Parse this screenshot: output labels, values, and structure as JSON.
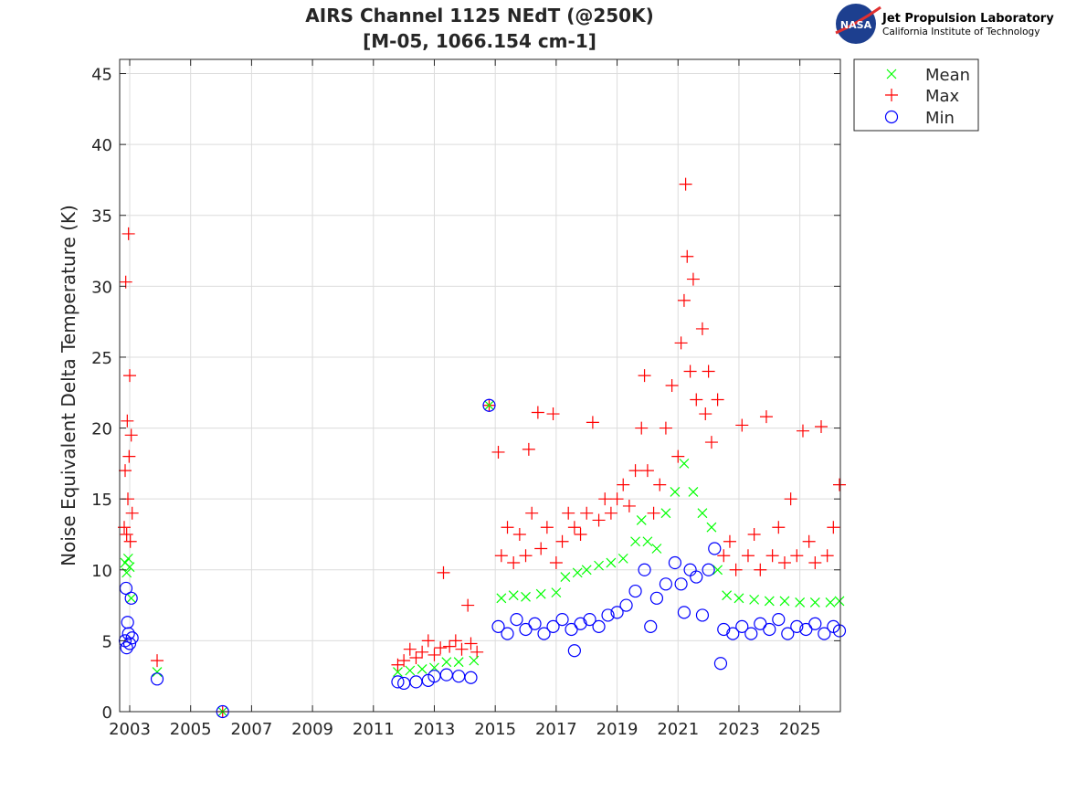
{
  "logo": {
    "agency": "NASA",
    "name": "Jet Propulsion Laboratory",
    "subtitle": "California Institute of Technology"
  },
  "chart_data": {
    "type": "scatter",
    "title": "AIRS Channel 1125 NEdT (@250K)",
    "subtitle": "[M-05, 1066.154 cm-1]",
    "xlabel": "",
    "ylabel": "Noise Equivalent Delta Temperature (K)",
    "xlim": [
      2002.67,
      2026.33
    ],
    "ylim": [
      0,
      46
    ],
    "xticks": [
      2003,
      2005,
      2007,
      2009,
      2011,
      2013,
      2015,
      2017,
      2019,
      2021,
      2023,
      2025
    ],
    "xtick_labels": [
      "2003",
      "2005",
      "2007",
      "2009",
      "2011",
      "2013",
      "2015",
      "2017",
      "2019",
      "2021",
      "2023",
      "2025"
    ],
    "yticks": [
      0,
      5,
      10,
      15,
      20,
      25,
      30,
      35,
      40,
      45
    ],
    "ytick_labels": [
      "0",
      "5",
      "10",
      "15",
      "20",
      "25",
      "30",
      "35",
      "40",
      "45"
    ],
    "grid": true,
    "legend": {
      "placement": "outside-top-right"
    },
    "series": [
      {
        "name": "Mean",
        "marker": "x",
        "color": "#00ff00",
        "points": [
          [
            2002.85,
            10.5
          ],
          [
            2002.9,
            9.8
          ],
          [
            2002.95,
            10.8
          ],
          [
            2003.0,
            10.2
          ],
          [
            2003.05,
            8.0
          ],
          [
            2003.9,
            2.8
          ],
          [
            2006.05,
            0
          ],
          [
            2011.8,
            2.8
          ],
          [
            2012.2,
            2.9
          ],
          [
            2012.6,
            3.0
          ],
          [
            2013.0,
            3.1
          ],
          [
            2013.4,
            3.5
          ],
          [
            2013.8,
            3.5
          ],
          [
            2014.3,
            3.6
          ],
          [
            2014.8,
            21.6
          ],
          [
            2015.2,
            8.0
          ],
          [
            2015.6,
            8.2
          ],
          [
            2016.0,
            8.1
          ],
          [
            2016.5,
            8.3
          ],
          [
            2017.0,
            8.4
          ],
          [
            2017.3,
            9.5
          ],
          [
            2017.7,
            9.8
          ],
          [
            2018.0,
            10.0
          ],
          [
            2018.4,
            10.3
          ],
          [
            2018.8,
            10.5
          ],
          [
            2019.2,
            10.8
          ],
          [
            2019.6,
            12
          ],
          [
            2019.8,
            13.5
          ],
          [
            2020.0,
            12
          ],
          [
            2020.3,
            11.5
          ],
          [
            2020.6,
            14
          ],
          [
            2020.9,
            15.5
          ],
          [
            2021.2,
            17.5
          ],
          [
            2021.5,
            15.5
          ],
          [
            2021.8,
            14
          ],
          [
            2022.1,
            13
          ],
          [
            2022.3,
            10
          ],
          [
            2022.6,
            8.2
          ],
          [
            2023.0,
            8.0
          ],
          [
            2023.5,
            7.9
          ],
          [
            2024.0,
            7.8
          ],
          [
            2024.5,
            7.8
          ],
          [
            2025.0,
            7.7
          ],
          [
            2025.5,
            7.7
          ],
          [
            2026.0,
            7.7
          ],
          [
            2026.3,
            7.8
          ]
        ]
      },
      {
        "name": "Max",
        "marker": "+",
        "color": "#ff0000",
        "points": [
          [
            2002.82,
            13
          ],
          [
            2002.85,
            17
          ],
          [
            2002.87,
            30.3
          ],
          [
            2002.9,
            12.5
          ],
          [
            2002.92,
            20.5
          ],
          [
            2002.94,
            15
          ],
          [
            2002.96,
            33.7
          ],
          [
            2002.98,
            18
          ],
          [
            2003.0,
            23.7
          ],
          [
            2003.02,
            12
          ],
          [
            2003.05,
            19.5
          ],
          [
            2003.08,
            14
          ],
          [
            2003.9,
            3.6
          ],
          [
            2006.05,
            0
          ],
          [
            2011.8,
            3.3
          ],
          [
            2012.0,
            3.6
          ],
          [
            2012.2,
            4.4
          ],
          [
            2012.4,
            3.8
          ],
          [
            2012.6,
            4.2
          ],
          [
            2012.8,
            5.0
          ],
          [
            2013.0,
            4.0
          ],
          [
            2013.2,
            4.5
          ],
          [
            2013.3,
            9.8
          ],
          [
            2013.5,
            4.6
          ],
          [
            2013.7,
            5.0
          ],
          [
            2013.9,
            4.4
          ],
          [
            2014.1,
            7.5
          ],
          [
            2014.2,
            4.8
          ],
          [
            2014.4,
            4.2
          ],
          [
            2014.8,
            21.6
          ],
          [
            2015.1,
            18.3
          ],
          [
            2015.2,
            11
          ],
          [
            2015.4,
            13
          ],
          [
            2015.6,
            10.5
          ],
          [
            2015.8,
            12.5
          ],
          [
            2016.0,
            11
          ],
          [
            2016.1,
            18.5
          ],
          [
            2016.2,
            14
          ],
          [
            2016.4,
            21.1
          ],
          [
            2016.5,
            11.5
          ],
          [
            2016.7,
            13
          ],
          [
            2016.9,
            21
          ],
          [
            2017.0,
            10.5
          ],
          [
            2017.2,
            12
          ],
          [
            2017.4,
            14
          ],
          [
            2017.6,
            13
          ],
          [
            2017.8,
            12.5
          ],
          [
            2018.0,
            14
          ],
          [
            2018.2,
            20.4
          ],
          [
            2018.4,
            13.5
          ],
          [
            2018.6,
            15
          ],
          [
            2018.8,
            14
          ],
          [
            2019.0,
            15
          ],
          [
            2019.2,
            16
          ],
          [
            2019.4,
            14.5
          ],
          [
            2019.6,
            17
          ],
          [
            2019.8,
            20
          ],
          [
            2019.9,
            23.7
          ],
          [
            2020.0,
            17
          ],
          [
            2020.2,
            14
          ],
          [
            2020.4,
            16
          ],
          [
            2020.6,
            20
          ],
          [
            2020.8,
            23
          ],
          [
            2021.0,
            18
          ],
          [
            2021.1,
            26
          ],
          [
            2021.2,
            29
          ],
          [
            2021.25,
            37.2
          ],
          [
            2021.3,
            32.1
          ],
          [
            2021.4,
            24
          ],
          [
            2021.5,
            30.5
          ],
          [
            2021.6,
            22
          ],
          [
            2021.8,
            27
          ],
          [
            2021.9,
            21
          ],
          [
            2022.0,
            24
          ],
          [
            2022.1,
            19
          ],
          [
            2022.3,
            22
          ],
          [
            2022.5,
            11
          ],
          [
            2022.7,
            12
          ],
          [
            2022.9,
            10
          ],
          [
            2023.1,
            20.2
          ],
          [
            2023.3,
            11
          ],
          [
            2023.5,
            12.5
          ],
          [
            2023.7,
            10
          ],
          [
            2023.9,
            20.8
          ],
          [
            2024.1,
            11
          ],
          [
            2024.3,
            13
          ],
          [
            2024.5,
            10.5
          ],
          [
            2024.7,
            15
          ],
          [
            2024.9,
            11
          ],
          [
            2025.1,
            19.8
          ],
          [
            2025.3,
            12
          ],
          [
            2025.5,
            10.5
          ],
          [
            2025.7,
            20.1
          ],
          [
            2025.9,
            11
          ],
          [
            2026.1,
            13
          ],
          [
            2026.3,
            16
          ]
        ]
      },
      {
        "name": "Min",
        "marker": "o",
        "color": "#0000ff",
        "points": [
          [
            2002.85,
            5
          ],
          [
            2002.88,
            8.7
          ],
          [
            2002.9,
            4.5
          ],
          [
            2002.93,
            6.3
          ],
          [
            2002.96,
            5.5
          ],
          [
            2003.0,
            4.8
          ],
          [
            2003.05,
            8.0
          ],
          [
            2003.08,
            5.2
          ],
          [
            2003.9,
            2.3
          ],
          [
            2006.05,
            0
          ],
          [
            2011.8,
            2.1
          ],
          [
            2012.0,
            2.0
          ],
          [
            2012.4,
            2.1
          ],
          [
            2012.8,
            2.2
          ],
          [
            2013.0,
            2.5
          ],
          [
            2013.4,
            2.6
          ],
          [
            2013.8,
            2.5
          ],
          [
            2014.2,
            2.4
          ],
          [
            2014.8,
            21.6
          ],
          [
            2015.1,
            6
          ],
          [
            2015.4,
            5.5
          ],
          [
            2015.7,
            6.5
          ],
          [
            2016.0,
            5.8
          ],
          [
            2016.3,
            6.2
          ],
          [
            2016.6,
            5.5
          ],
          [
            2016.9,
            6
          ],
          [
            2017.2,
            6.5
          ],
          [
            2017.5,
            5.8
          ],
          [
            2017.6,
            4.3
          ],
          [
            2017.8,
            6.2
          ],
          [
            2018.1,
            6.5
          ],
          [
            2018.4,
            6
          ],
          [
            2018.7,
            6.8
          ],
          [
            2019.0,
            7
          ],
          [
            2019.3,
            7.5
          ],
          [
            2019.6,
            8.5
          ],
          [
            2019.9,
            10
          ],
          [
            2020.1,
            6
          ],
          [
            2020.3,
            8
          ],
          [
            2020.6,
            9
          ],
          [
            2020.9,
            10.5
          ],
          [
            2021.1,
            9
          ],
          [
            2021.2,
            7
          ],
          [
            2021.4,
            10
          ],
          [
            2021.6,
            9.5
          ],
          [
            2021.8,
            6.8
          ],
          [
            2022.0,
            10
          ],
          [
            2022.2,
            11.5
          ],
          [
            2022.4,
            3.4
          ],
          [
            2022.5,
            5.8
          ],
          [
            2022.8,
            5.5
          ],
          [
            2023.1,
            6
          ],
          [
            2023.4,
            5.5
          ],
          [
            2023.7,
            6.2
          ],
          [
            2024.0,
            5.8
          ],
          [
            2024.3,
            6.5
          ],
          [
            2024.6,
            5.5
          ],
          [
            2024.9,
            6
          ],
          [
            2025.2,
            5.8
          ],
          [
            2025.5,
            6.2
          ],
          [
            2025.8,
            5.5
          ],
          [
            2026.1,
            6
          ],
          [
            2026.3,
            5.7
          ]
        ]
      }
    ]
  }
}
